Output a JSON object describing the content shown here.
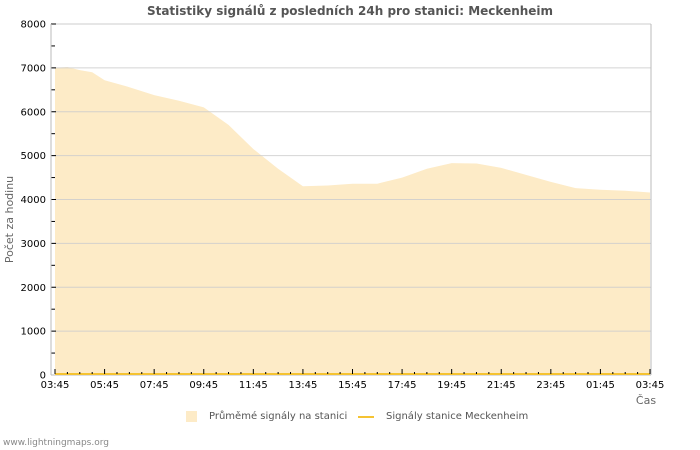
{
  "title": "Statistiky signálů z posledních 24h pro stanici: Meckenheim",
  "footer": "www.lightningmaps.org",
  "legend": {
    "area_label": "Průměmé signály na stanici",
    "line_label": "Signály stanice Meckenheim"
  },
  "colors": {
    "area": "#fdebc7",
    "line": "#f5c332",
    "grid": "#cccccc",
    "axis": "#bbbbbb"
  },
  "chart_data": {
    "type": "area",
    "title": "Statistiky signálů z posledních 24h pro stanici: Meckenheim",
    "xlabel": "Čas",
    "ylabel": "Počet za hodinu",
    "ylim": [
      0,
      8000
    ],
    "yticks": [
      0,
      1000,
      2000,
      3000,
      4000,
      5000,
      6000,
      7000,
      8000
    ],
    "xticks": [
      "03:45",
      "05:45",
      "07:45",
      "09:45",
      "11:45",
      "13:45",
      "15:45",
      "17:45",
      "19:45",
      "21:45",
      "23:45",
      "01:45",
      "03:45"
    ],
    "grid": true,
    "legend_position": "bottom",
    "x_hours": [
      0,
      0.5,
      1,
      1.5,
      2,
      3,
      4,
      5,
      6,
      7,
      8,
      9,
      10,
      11,
      12,
      13,
      14,
      15,
      16,
      17,
      18,
      19,
      20,
      21,
      22,
      23,
      24
    ],
    "series": [
      {
        "name": "Průměmé signály na stanici",
        "type": "area",
        "values": [
          7000,
          7020,
          6950,
          6900,
          6720,
          6560,
          6380,
          6250,
          6100,
          5700,
          5150,
          4700,
          4300,
          4320,
          4360,
          4360,
          4500,
          4700,
          4830,
          4820,
          4720,
          4560,
          4400,
          4260,
          4220,
          4200,
          4160
        ]
      },
      {
        "name": "Signály stanice Meckenheim",
        "type": "line",
        "values": [
          0,
          0,
          0,
          0,
          0,
          0,
          0,
          0,
          0,
          0,
          0,
          0,
          0,
          0,
          0,
          0,
          0,
          0,
          0,
          0,
          0,
          0,
          0,
          0,
          0,
          0,
          0
        ]
      }
    ]
  }
}
